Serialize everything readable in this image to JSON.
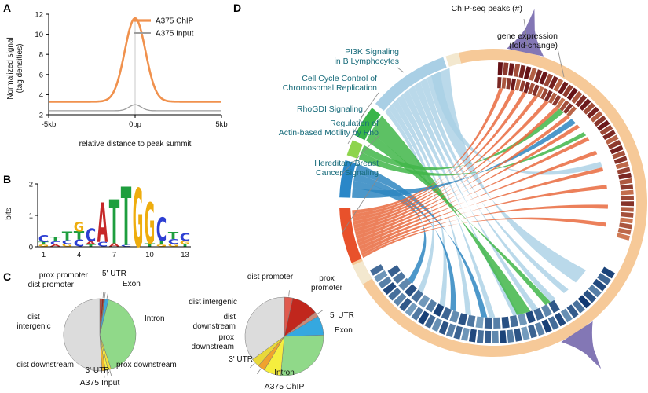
{
  "panels": {
    "a": "A",
    "b": "B",
    "c": "C",
    "d": "D"
  },
  "chart_data": [
    {
      "id": "peak_profile",
      "type": "line",
      "xlabel": "relative distance to peak summit",
      "ylabel": "Normalized signal\n(tag densities)",
      "x_range_kb": [
        -5,
        5
      ],
      "xticks": [
        {
          "v": -5,
          "label": "-5kb"
        },
        {
          "v": 0,
          "label": "0bp"
        },
        {
          "v": 5,
          "label": "5kb"
        }
      ],
      "ylim": [
        2,
        12
      ],
      "yticks": [
        2,
        4,
        6,
        8,
        10,
        12
      ],
      "series": [
        {
          "name": "A375 ChIP",
          "color": "#f0914d",
          "baseline": 3.3,
          "peak": 11.6,
          "sigma_kb": 0.6
        },
        {
          "name": "A375 Input",
          "color": "#9e9e9e",
          "baseline": 2.4,
          "peak": 3.0,
          "sigma_kb": 0.35
        }
      ]
    },
    {
      "id": "motif_logo",
      "type": "logo",
      "ylabel": "bits",
      "ylim": [
        0,
        2
      ],
      "yticks": [
        0,
        1,
        2
      ],
      "xticks": [
        1,
        4,
        7,
        10,
        13
      ],
      "letter_colors": {
        "A": "#c62828",
        "C": "#2d3fd3",
        "G": "#eead0e",
        "T": "#1e9e3e"
      },
      "positions": [
        [
          [
            "C",
            0.22
          ],
          [
            "T",
            0.08
          ],
          [
            "G",
            0.06
          ]
        ],
        [
          [
            "T",
            0.14
          ],
          [
            "C",
            0.1
          ],
          [
            "A",
            0.06
          ]
        ],
        [
          [
            "T",
            0.28
          ],
          [
            "C",
            0.12
          ],
          [
            "G",
            0.08
          ]
        ],
        [
          [
            "G",
            0.3
          ],
          [
            "T",
            0.26
          ],
          [
            "C",
            0.22
          ]
        ],
        [
          [
            "C",
            0.4
          ],
          [
            "A",
            0.1
          ],
          [
            "T",
            0.06
          ]
        ],
        [
          [
            "A",
            1.25
          ],
          [
            "C",
            0.15
          ]
        ],
        [
          [
            "T",
            1.4
          ],
          [
            "A",
            0.1
          ]
        ],
        [
          [
            "T",
            1.85
          ],
          [
            "C",
            0.05
          ]
        ],
        [
          [
            "G",
            1.85
          ]
        ],
        [
          [
            "G",
            1.3
          ],
          [
            "T",
            0.1
          ]
        ],
        [
          [
            "C",
            0.75
          ],
          [
            "T",
            0.12
          ],
          [
            "G",
            0.06
          ]
        ],
        [
          [
            "T",
            0.22
          ],
          [
            "C",
            0.16
          ],
          [
            "G",
            0.08
          ]
        ],
        [
          [
            "C",
            0.24
          ],
          [
            "G",
            0.1
          ],
          [
            "T",
            0.08
          ]
        ]
      ]
    },
    {
      "id": "pie_input",
      "type": "pie",
      "title": "A375 Input",
      "slices": [
        {
          "label": "prox promoter",
          "value": 1.0,
          "color": "#cf3a2b"
        },
        {
          "label": "dist promoter",
          "value": 0.8,
          "color": "#992b22"
        },
        {
          "label": "5' UTR",
          "value": 0.5,
          "color": "#b5651d"
        },
        {
          "label": "Exon",
          "value": 1.6,
          "color": "#3fa9dc"
        },
        {
          "label": "Intron",
          "value": 41,
          "color": "#90d989"
        },
        {
          "label": "prox downstream",
          "value": 1.4,
          "color": "#f2e23a"
        },
        {
          "label": "3' UTR",
          "value": 1.2,
          "color": "#f7ef45"
        },
        {
          "label": "dist downstream",
          "value": 1.5,
          "color": "#f0b62f"
        },
        {
          "label": "dist intergenic",
          "value": 51,
          "color": "#dcdcdc"
        }
      ]
    },
    {
      "id": "pie_chip",
      "type": "pie",
      "title": "A375 ChIP",
      "slices": [
        {
          "label": "dist promoter",
          "value": 3.5,
          "color": "#e05a4e"
        },
        {
          "label": "prox promoter",
          "value": 11,
          "color": "#c1271d"
        },
        {
          "label": "5' UTR",
          "value": 2,
          "color": "#c98a7a"
        },
        {
          "label": "Exon",
          "value": 8,
          "color": "#35a8e0"
        },
        {
          "label": "Intron",
          "value": 27,
          "color": "#90d989"
        },
        {
          "label": "3' UTR",
          "value": 7,
          "color": "#f5ee3e"
        },
        {
          "label": "prox downstream",
          "value": 3,
          "color": "#f0a22e"
        },
        {
          "label": "dist downstream",
          "value": 3.5,
          "color": "#e8d83a"
        },
        {
          "label": "dist intergenic",
          "value": 35,
          "color": "#dcdcdc"
        }
      ]
    },
    {
      "id": "circos",
      "type": "circos",
      "labels": {
        "chip_peaks": "ChIP-seq peaks (#)",
        "gene_expression": "gene expression\n(fold-change)"
      },
      "ring_color": "#f6c998",
      "spacer_color": "#f3e8cf",
      "spacers": [
        [
          103,
          108
        ],
        [
          204,
          212
        ]
      ],
      "peak_glyph_color": "#8377b5",
      "pathways": [
        {
          "label": "PI3K Signaling\nin B Lymphocytes",
          "color": "#a9cfe5",
          "arc": [
            109,
            140
          ]
        },
        {
          "label": "Cell Cycle Control of\nChromosomal Replication",
          "color": "#39b54a",
          "arc": [
            142,
            154
          ]
        },
        {
          "label": "RhoGDI Signaling",
          "color": "#8ed44c",
          "arc": [
            156,
            162
          ]
        },
        {
          "label": "Regulation of\nActin-based Motility by Rho",
          "color": "#2a87c8",
          "arc": [
            164,
            178
          ]
        },
        {
          "label": "Hereditary Breast\nCancer Signaling",
          "color": "#e8512b",
          "arc": [
            182,
            203
          ]
        }
      ],
      "expression_scale": [
        "#f9a26b",
        "#5c0a12"
      ],
      "peak_scale": [
        "#a6cee3",
        "#08306b"
      ],
      "expression_cells": [
        0.95,
        0.7,
        0.9,
        0.55,
        0.85,
        0.95,
        0.45,
        0.8,
        0.92,
        0.6,
        0.85,
        0.4,
        0.9,
        0.68,
        0.95,
        0.5,
        0.78,
        0.9,
        0.58,
        0.84,
        0.46,
        0.72,
        0.9,
        0.6,
        0.8,
        0.42,
        0.68,
        0.85,
        0.52,
        0.74,
        0.38,
        0.62,
        0.8,
        0.48,
        0.68,
        0.34,
        0.58,
        0.74,
        0.44,
        0.54,
        0.3,
        0.5,
        0.38,
        0.26
      ],
      "expression_cells_row2": [
        0.8,
        0.5,
        0.7,
        0.9,
        0.4,
        0.65,
        0.85,
        0.55,
        0.75,
        0.35,
        0.6,
        0.8,
        0.45,
        0.7,
        0.3,
        0.55,
        0.75,
        0.4
      ],
      "peak_cells": [
        0.88,
        0.66,
        0.84,
        0.5,
        0.78,
        0.94,
        0.58,
        0.72,
        0.4,
        0.84,
        0.62,
        0.9,
        0.48,
        0.68,
        0.32,
        0.78,
        0.54,
        0.88,
        0.44,
        0.72,
        0.6,
        0.84,
        0.36,
        0.68,
        0.5,
        0.78,
        0.4,
        0.64,
        0.9,
        0.54,
        0.32,
        0.74,
        0.46,
        0.6,
        0.84,
        0.5,
        0.36,
        0.62
      ],
      "peak_cells_row2": [
        0.75,
        0.45,
        0.65,
        0.85,
        0.35,
        0.6,
        0.8,
        0.5,
        0.7,
        0.3,
        0.55,
        0.78,
        0.42,
        0.66,
        0.88,
        0.5,
        0.34,
        0.6,
        0.8,
        0.44,
        0.56,
        0.7
      ],
      "ribbon_groups": [
        {
          "color": "#a9cfe5",
          "opacity": 0.8,
          "links": [
            {
              "a": [
                108,
                118
              ],
              "b": [
                -44,
                -36
              ]
            },
            {
              "a": [
                118,
                121
              ],
              "b": [
                -52,
                -49
              ]
            },
            {
              "a": [
                121,
                124
              ],
              "b": [
                -60,
                -57
              ]
            },
            {
              "a": [
                124,
                127
              ],
              "b": [
                -70,
                -67
              ]
            },
            {
              "a": [
                127,
                130
              ],
              "b": [
                -80,
                -77
              ]
            },
            {
              "a": [
                130,
                133
              ],
              "b": [
                -92,
                -89
              ]
            },
            {
              "a": [
                133,
                135.5
              ],
              "b": [
                -104,
                -101
              ]
            },
            {
              "a": [
                135.5,
                138
              ],
              "b": [
                -118,
                -115
              ]
            },
            {
              "a": [
                138,
                140
              ],
              "b": [
                -131,
                -128
              ]
            },
            {
              "a": [
                112,
                116
              ],
              "b": [
                18,
                21
              ]
            }
          ]
        },
        {
          "color": "#41b649",
          "opacity": 0.85,
          "links": [
            {
              "a": [
                142,
                150
              ],
              "b": [
                -78,
                -71
              ]
            },
            {
              "a": [
                150,
                154
              ],
              "b": [
                -63,
                -60
              ]
            },
            {
              "a": [
                156,
                159
              ],
              "b": [
                52,
                55
              ]
            },
            {
              "a": [
                159,
                162
              ],
              "b": [
                36,
                38
              ]
            }
          ]
        },
        {
          "color": "#2e86c1",
          "opacity": 0.85,
          "links": [
            {
              "a": [
                164,
                168
              ],
              "b": [
                -96,
                -93
              ]
            },
            {
              "a": [
                168,
                171
              ],
              "b": [
                -112,
                -109
              ]
            },
            {
              "a": [
                171,
                174
              ],
              "b": [
                -138,
                -135
              ]
            },
            {
              "a": [
                174,
                178
              ],
              "b": [
                44,
                47
              ]
            }
          ]
        },
        {
          "color": "#e96a3e",
          "opacity": 0.85,
          "links": [
            {
              "a": [
                183,
                184.5
              ],
              "b": [
                85,
                87
              ]
            },
            {
              "a": [
                184.5,
                186
              ],
              "b": [
                79,
                81
              ]
            },
            {
              "a": [
                186,
                187.5
              ],
              "b": [
                73,
                75
              ]
            },
            {
              "a": [
                187.5,
                189
              ],
              "b": [
                67,
                69
              ]
            },
            {
              "a": [
                189,
                190.5
              ],
              "b": [
                61,
                63
              ]
            },
            {
              "a": [
                190.5,
                192
              ],
              "b": [
                55,
                57
              ]
            },
            {
              "a": [
                192,
                193.5
              ],
              "b": [
                48,
                50
              ]
            },
            {
              "a": [
                193.5,
                195
              ],
              "b": [
                41,
                43
              ]
            },
            {
              "a": [
                195,
                196.5
              ],
              "b": [
                33,
                35
              ]
            },
            {
              "a": [
                196.5,
                198
              ],
              "b": [
                25,
                27
              ]
            },
            {
              "a": [
                198,
                199.5
              ],
              "b": [
                16,
                18
              ]
            },
            {
              "a": [
                199.5,
                201
              ],
              "b": [
                7,
                9
              ]
            },
            {
              "a": [
                201,
                202
              ],
              "b": [
                -3,
                -1
              ]
            },
            {
              "a": [
                202,
                203
              ],
              "b": [
                -12,
                -10
              ]
            }
          ]
        }
      ]
    }
  ]
}
